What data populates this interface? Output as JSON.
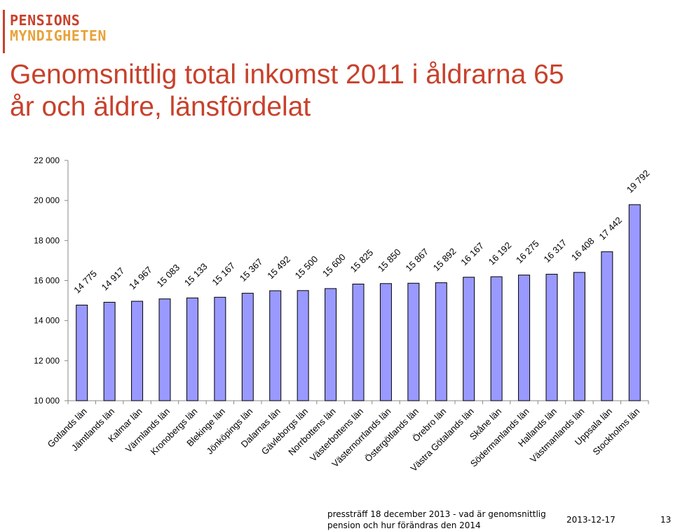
{
  "logo": {
    "line1": "PENSIONS",
    "line2": "MYNDIGHETEN"
  },
  "slide": {
    "title": "Genomsnittlig total inkomst 2011 i åldrarna 65 år och äldre, länsfördelat",
    "footer_text": "pressträff 18 december 2013 - vad är genomsnittlig pension och hur förändras den 2014",
    "date": "2013-12-17",
    "page_number": "13"
  },
  "colors": {
    "bar": "#9999ff",
    "bar_stroke": "#000000",
    "title": "#c8412b",
    "logo_line1": "#c8412b",
    "logo_line2": "#e8a23a"
  },
  "chart_data": {
    "type": "bar",
    "categories": [
      "Gotlands län",
      "Jämtlands län",
      "Kalmar län",
      "Värmlands län",
      "Kronobergs län",
      "Blekinge län",
      "Jönköpings län",
      "Dalarnas län",
      "Gävleborgs län",
      "Norrbottens län",
      "Västerbottens län",
      "Västernorrlands län",
      "Östergötlands län",
      "Örebro län",
      "Västra Götalands län",
      "Skåne län",
      "Södermanlands län",
      "Hallands län",
      "Västmanlands län",
      "Uppsala län",
      "Stockholms län"
    ],
    "values": [
      14775,
      14917,
      14967,
      15083,
      15133,
      15167,
      15367,
      15492,
      15500,
      15600,
      15825,
      15850,
      15867,
      15892,
      16167,
      16192,
      16275,
      16317,
      16408,
      17442,
      19792
    ],
    "value_labels": [
      "14 775",
      "14 917",
      "14 967",
      "15 083",
      "15 133",
      "15 167",
      "15 367",
      "15 492",
      "15 500",
      "15 600",
      "15 825",
      "15 850",
      "15 867",
      "15 892",
      "16 167",
      "16 192",
      "16 275",
      "16 317",
      "16 408",
      "17 442",
      "19 792"
    ],
    "y_ticks": [
      10000,
      12000,
      14000,
      16000,
      18000,
      20000,
      22000
    ],
    "y_tick_labels": [
      "10 000",
      "12 000",
      "14 000",
      "16 000",
      "18 000",
      "20 000",
      "22 000"
    ],
    "ylim": [
      10000,
      22000
    ],
    "grid": false,
    "legend": "none"
  }
}
